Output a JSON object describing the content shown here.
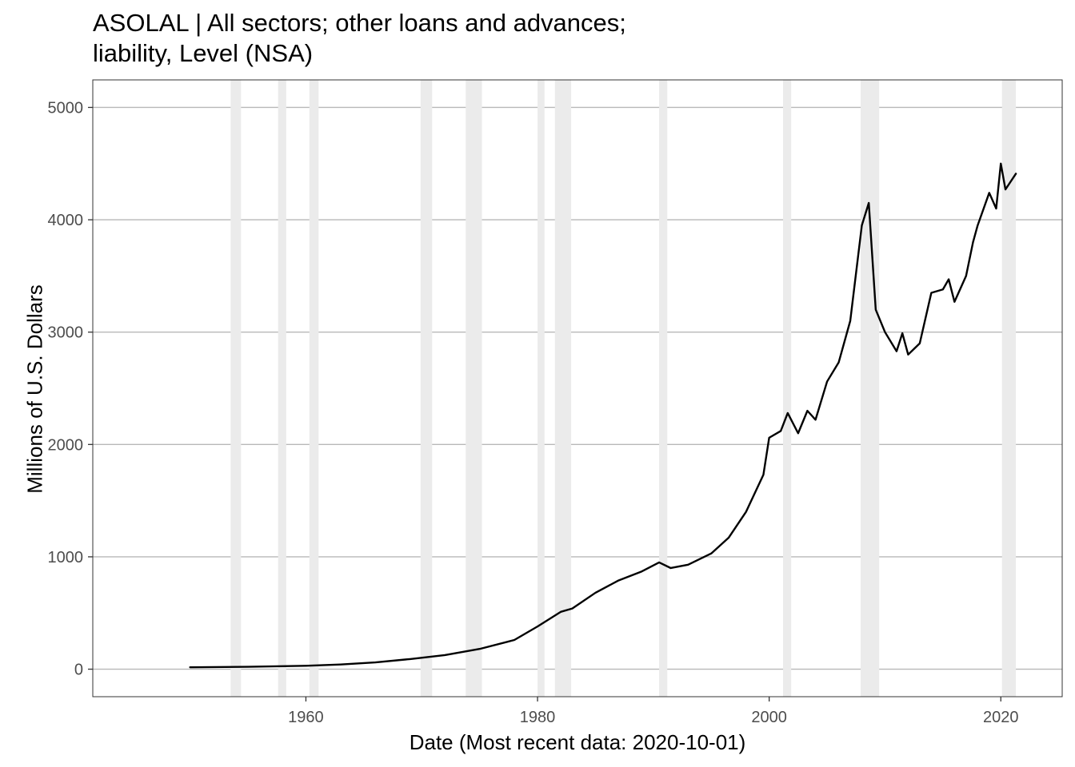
{
  "chart_data": {
    "type": "line",
    "title": "ASOLAL | All sectors; other loans and advances;\nliability, Level (NSA)",
    "xlabel": "Date (Most recent data: 2020-10-01)",
    "ylabel": "Millions of U.S. Dollars",
    "xlim": [
      1941.6,
      2025.3
    ],
    "ylim": [
      -245,
      5245
    ],
    "x_ticks": [
      1960,
      1980,
      2000,
      2020
    ],
    "y_ticks": [
      0,
      1000,
      2000,
      3000,
      4000,
      5000
    ],
    "x_tick_labels": [
      "1960",
      "1980",
      "2000",
      "2020"
    ],
    "y_tick_labels": [
      "0",
      "1000",
      "2000",
      "3000",
      "4000",
      "5000"
    ],
    "grid": true,
    "recession_shading": [
      [
        1953.5,
        1954.4
      ],
      [
        1957.6,
        1958.3
      ],
      [
        1960.3,
        1961.1
      ],
      [
        1969.9,
        1970.9
      ],
      [
        1973.8,
        1975.2
      ],
      [
        1980.0,
        1980.6
      ],
      [
        1981.5,
        1982.9
      ],
      [
        1990.5,
        1991.2
      ],
      [
        2001.2,
        2001.9
      ],
      [
        2007.9,
        2009.5
      ],
      [
        2020.1,
        2021.3
      ]
    ],
    "series": [
      {
        "color": "#000000",
        "x": [
          1950,
          1955,
          1960,
          1963,
          1966,
          1969,
          1972,
          1975,
          1978,
          1980,
          1982,
          1983,
          1985,
          1987,
          1989,
          1990.5,
          1991.5,
          1993,
          1995,
          1996.5,
          1998,
          1999.5,
          2000,
          2001,
          2001.6,
          2002.5,
          2003.3,
          2004,
          2005,
          2006,
          2007,
          2008,
          2008.6,
          2009.2,
          2010,
          2011,
          2011.5,
          2012,
          2013,
          2014,
          2015,
          2015.5,
          2016,
          2017,
          2017.6,
          2018,
          2019,
          2019.6,
          2020,
          2020.4,
          2021.3
        ],
        "y": [
          17,
          21,
          30,
          42,
          60,
          90,
          125,
          180,
          260,
          380,
          510,
          540,
          680,
          790,
          870,
          950,
          900,
          930,
          1030,
          1170,
          1400,
          1730,
          2060,
          2120,
          2280,
          2100,
          2300,
          2220,
          2560,
          2730,
          3100,
          3950,
          4150,
          3200,
          3000,
          2830,
          2990,
          2800,
          2900,
          3350,
          3380,
          3470,
          3270,
          3500,
          3800,
          3950,
          4240,
          4100,
          4500,
          4270,
          4410
        ]
      }
    ]
  }
}
